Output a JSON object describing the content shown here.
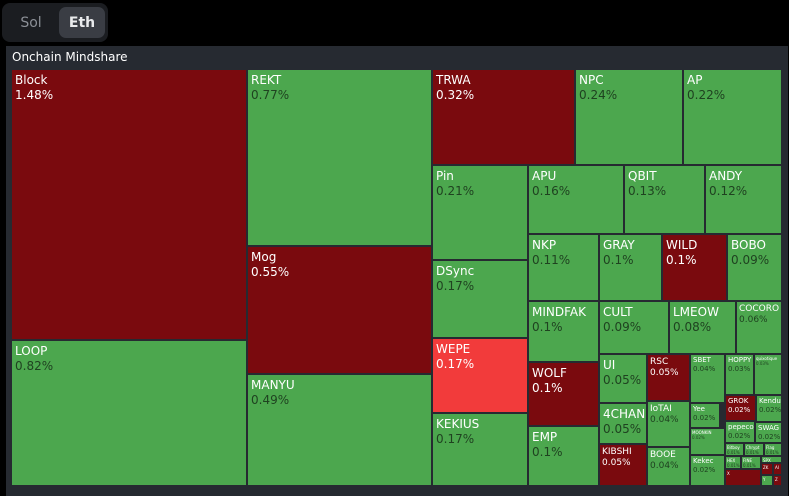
{
  "toggle": {
    "options": [
      "Sol",
      "Eth"
    ],
    "selected": "Eth"
  },
  "panel": {
    "title": "Onchain Mindshare"
  },
  "colors": {
    "gain": "#4ca74e",
    "loss": "#7a0a0e",
    "highlight": "#f23b3b",
    "panel_bg": "#262a31"
  },
  "tiles": [
    {
      "name": "Block",
      "value": "1.48%",
      "trend": "loss"
    },
    {
      "name": "LOOP",
      "value": "0.82%",
      "trend": "gain"
    },
    {
      "name": "REKT",
      "value": "0.77%",
      "trend": "gain"
    },
    {
      "name": "Mog",
      "value": "0.55%",
      "trend": "loss"
    },
    {
      "name": "MANYU",
      "value": "0.49%",
      "trend": "gain"
    },
    {
      "name": "TRWA",
      "value": "0.32%",
      "trend": "loss"
    },
    {
      "name": "NPC",
      "value": "0.24%",
      "trend": "gain"
    },
    {
      "name": "AP",
      "value": "0.22%",
      "trend": "gain"
    },
    {
      "name": "Pin",
      "value": "0.21%",
      "trend": "gain"
    },
    {
      "name": "APU",
      "value": "0.16%",
      "trend": "gain"
    },
    {
      "name": "QBIT",
      "value": "0.13%",
      "trend": "gain"
    },
    {
      "name": "ANDY",
      "value": "0.12%",
      "trend": "gain"
    },
    {
      "name": "DSync",
      "value": "0.17%",
      "trend": "gain"
    },
    {
      "name": "NKP",
      "value": "0.11%",
      "trend": "gain"
    },
    {
      "name": "GRAY",
      "value": "0.1%",
      "trend": "gain"
    },
    {
      "name": "WILD",
      "value": "0.1%",
      "trend": "loss"
    },
    {
      "name": "BOBO",
      "value": "0.09%",
      "trend": "gain"
    },
    {
      "name": "MINDFAK",
      "value": "0.1%",
      "trend": "gain"
    },
    {
      "name": "CULT",
      "value": "0.09%",
      "trend": "gain"
    },
    {
      "name": "LMEOW",
      "value": "0.08%",
      "trend": "gain"
    },
    {
      "name": "COCORO",
      "value": "0.06%",
      "trend": "gain"
    },
    {
      "name": "WEPE",
      "value": "0.17%",
      "trend": "highlight"
    },
    {
      "name": "WOLF",
      "value": "0.1%",
      "trend": "loss"
    },
    {
      "name": "UI",
      "value": "0.05%",
      "trend": "gain"
    },
    {
      "name": "RSC",
      "value": "0.05%",
      "trend": "loss"
    },
    {
      "name": "SBET",
      "value": "0.04%",
      "trend": "gain"
    },
    {
      "name": "HOPPY",
      "value": "0.03%",
      "trend": "gain"
    },
    {
      "name": "quixotique",
      "value": "0.03%",
      "trend": "gain"
    },
    {
      "name": "KEKIUS",
      "value": "0.17%",
      "trend": "gain"
    },
    {
      "name": "4CHAN",
      "value": "0.05%",
      "trend": "gain"
    },
    {
      "name": "IoTAI",
      "value": "0.04%",
      "trend": "gain"
    },
    {
      "name": "Yee",
      "value": "0.02%",
      "trend": "gain"
    },
    {
      "name": "GROK",
      "value": "0.02%",
      "trend": "loss"
    },
    {
      "name": "Kendu",
      "value": "0.02%",
      "trend": "gain"
    },
    {
      "name": "pepecoin",
      "value": "0.02%",
      "trend": "gain"
    },
    {
      "name": "SWAG",
      "value": "0.02%",
      "trend": "gain"
    },
    {
      "name": "MOONKIN",
      "value": "0.02%",
      "trend": "gain"
    },
    {
      "name": "EMP",
      "value": "0.1%",
      "trend": "gain"
    },
    {
      "name": "KIBSHI",
      "value": "0.05%",
      "trend": "loss"
    },
    {
      "name": "BOOE",
      "value": "0.04%",
      "trend": "gain"
    },
    {
      "name": "Kekec",
      "value": "0.02%",
      "trend": "gain"
    },
    {
      "name": "Bitboy",
      "value": "0.01%",
      "trend": "gain"
    },
    {
      "name": "Chrypt",
      "value": "0.01%",
      "trend": "gain"
    },
    {
      "name": "Flag",
      "value": "0.01%",
      "trend": "gain"
    },
    {
      "name": "HEX",
      "value": "0.01%",
      "trend": "gain"
    },
    {
      "name": "FINE",
      "value": "0.01%",
      "trend": "gain"
    },
    {
      "name": "SPX",
      "value": "0.01%",
      "trend": "gain"
    },
    {
      "name": "ZK",
      "value": "",
      "trend": "loss"
    },
    {
      "name": "AI",
      "value": "",
      "trend": "loss"
    },
    {
      "name": "X",
      "value": "",
      "trend": "loss"
    },
    {
      "name": "Y",
      "value": "",
      "trend": "gain"
    },
    {
      "name": "Z",
      "value": "",
      "trend": "loss"
    }
  ]
}
